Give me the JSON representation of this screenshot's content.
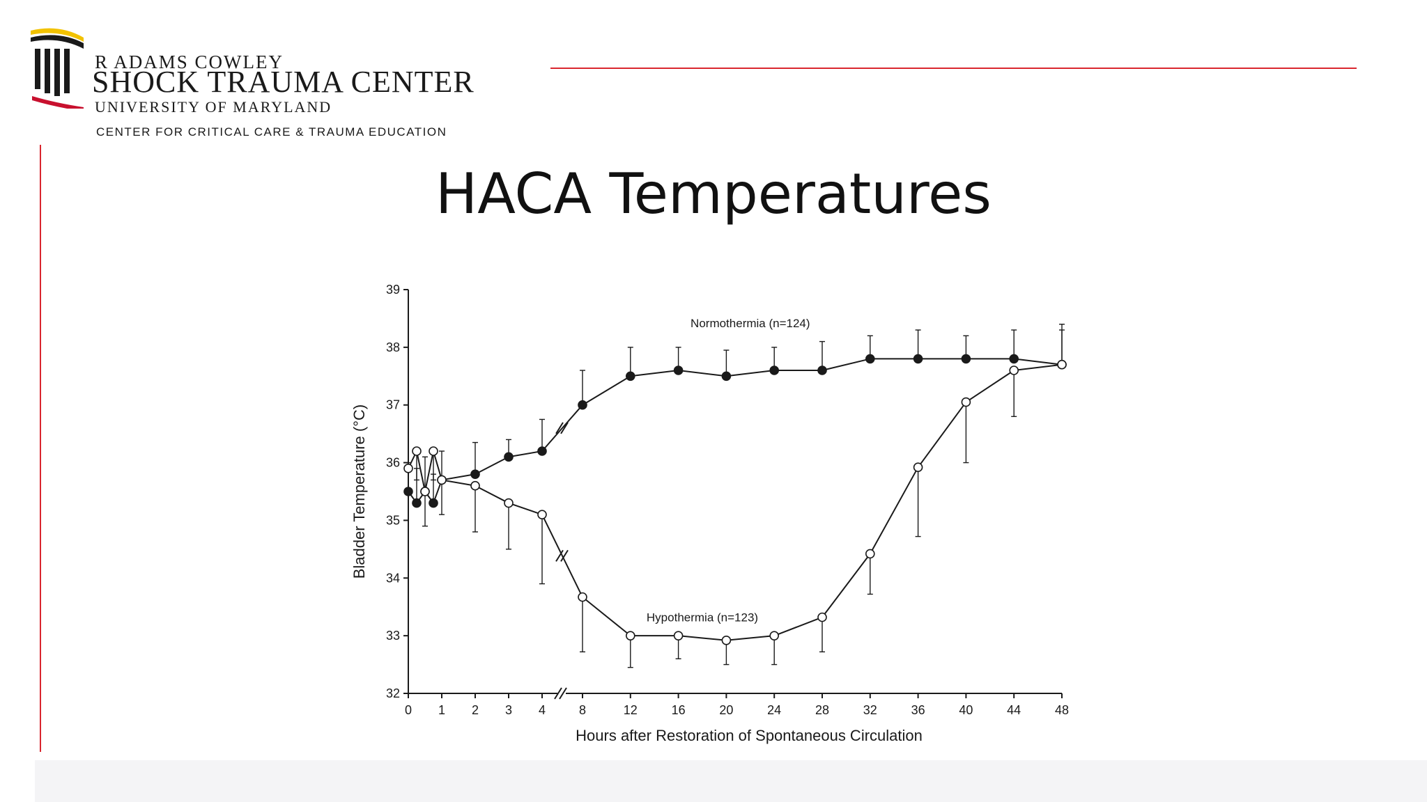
{
  "header": {
    "logo_line1": "R Adams Cowley",
    "logo_line2": "Shock Trauma Center",
    "logo_line3": "University of Maryland",
    "logo_line4": "Center for Critical Care & Trauma Education"
  },
  "slide": {
    "title": "HACA Temperatures"
  },
  "colors": {
    "accent_red": "#d9262e",
    "logo_gold": "#f2c200",
    "logo_red": "#c8102e",
    "text": "#111111"
  },
  "chart_data": {
    "type": "line",
    "title": "",
    "xlabel": "Hours after Restoration of Spontaneous Circulation",
    "ylabel": "Bladder Temperature (°C)",
    "ylim": [
      32,
      39
    ],
    "x_ticks": [
      "0",
      "1",
      "2",
      "3",
      "4",
      "8",
      "12",
      "16",
      "20",
      "24",
      "28",
      "32",
      "36",
      "40",
      "44",
      "48"
    ],
    "y_ticks": [
      "32",
      "33",
      "34",
      "35",
      "36",
      "37",
      "38",
      "39"
    ],
    "axis_break_between": [
      "4",
      "8"
    ],
    "grid": false,
    "series": [
      {
        "name": "Normothermia (n=124)",
        "marker": "filled-circle",
        "points": [
          {
            "x": 0,
            "y": 35.5,
            "err": 0.5
          },
          {
            "x": 0.25,
            "y": 35.3,
            "err": 0.6
          },
          {
            "x": 0.5,
            "y": 35.5,
            "err": 0.6
          },
          {
            "x": 0.75,
            "y": 35.3,
            "err": 0.5
          },
          {
            "x": 1,
            "y": 35.7,
            "err": 0.5
          },
          {
            "x": 2,
            "y": 35.8,
            "err": 0.55
          },
          {
            "x": 3,
            "y": 36.1,
            "err": 0.3
          },
          {
            "x": 4,
            "y": 36.2,
            "err": 0.55
          },
          {
            "x": 8,
            "y": 37.0,
            "err": 0.6
          },
          {
            "x": 12,
            "y": 37.5,
            "err": 0.5
          },
          {
            "x": 16,
            "y": 37.6,
            "err": 0.4
          },
          {
            "x": 20,
            "y": 37.5,
            "err": 0.45
          },
          {
            "x": 24,
            "y": 37.6,
            "err": 0.4
          },
          {
            "x": 28,
            "y": 37.6,
            "err": 0.5
          },
          {
            "x": 32,
            "y": 37.8,
            "err": 0.4
          },
          {
            "x": 36,
            "y": 37.8,
            "err": 0.5
          },
          {
            "x": 40,
            "y": 37.8,
            "err": 0.4
          },
          {
            "x": 44,
            "y": 37.8,
            "err": 0.5
          },
          {
            "x": 48,
            "y": 37.7,
            "err": 0.7
          }
        ]
      },
      {
        "name": "Hypothermia (n=123)",
        "marker": "open-circle",
        "points": [
          {
            "x": 0,
            "y": 35.9,
            "err": 0.4
          },
          {
            "x": 0.25,
            "y": 36.2,
            "err": 0.5
          },
          {
            "x": 0.5,
            "y": 35.5,
            "err": 0.6
          },
          {
            "x": 0.75,
            "y": 36.2,
            "err": 0.5
          },
          {
            "x": 1,
            "y": 35.7,
            "err": 0.6
          },
          {
            "x": 2,
            "y": 35.6,
            "err": 0.8
          },
          {
            "x": 3,
            "y": 35.3,
            "err": 0.8
          },
          {
            "x": 4,
            "y": 35.1,
            "err": 1.2
          },
          {
            "x": 8,
            "y": 33.67,
            "err": 0.95
          },
          {
            "x": 12,
            "y": 33.0,
            "err": 0.55
          },
          {
            "x": 16,
            "y": 33.0,
            "err": 0.4
          },
          {
            "x": 20,
            "y": 32.92,
            "err": 0.42
          },
          {
            "x": 24,
            "y": 33.0,
            "err": 0.5
          },
          {
            "x": 28,
            "y": 33.32,
            "err": 0.6
          },
          {
            "x": 32,
            "y": 34.42,
            "err": 0.7
          },
          {
            "x": 36,
            "y": 35.92,
            "err": 1.2
          },
          {
            "x": 40,
            "y": 37.05,
            "err": 1.05
          },
          {
            "x": 44,
            "y": 37.6,
            "err": 0.8
          },
          {
            "x": 48,
            "y": 37.7,
            "err": 0.6
          }
        ]
      }
    ]
  }
}
